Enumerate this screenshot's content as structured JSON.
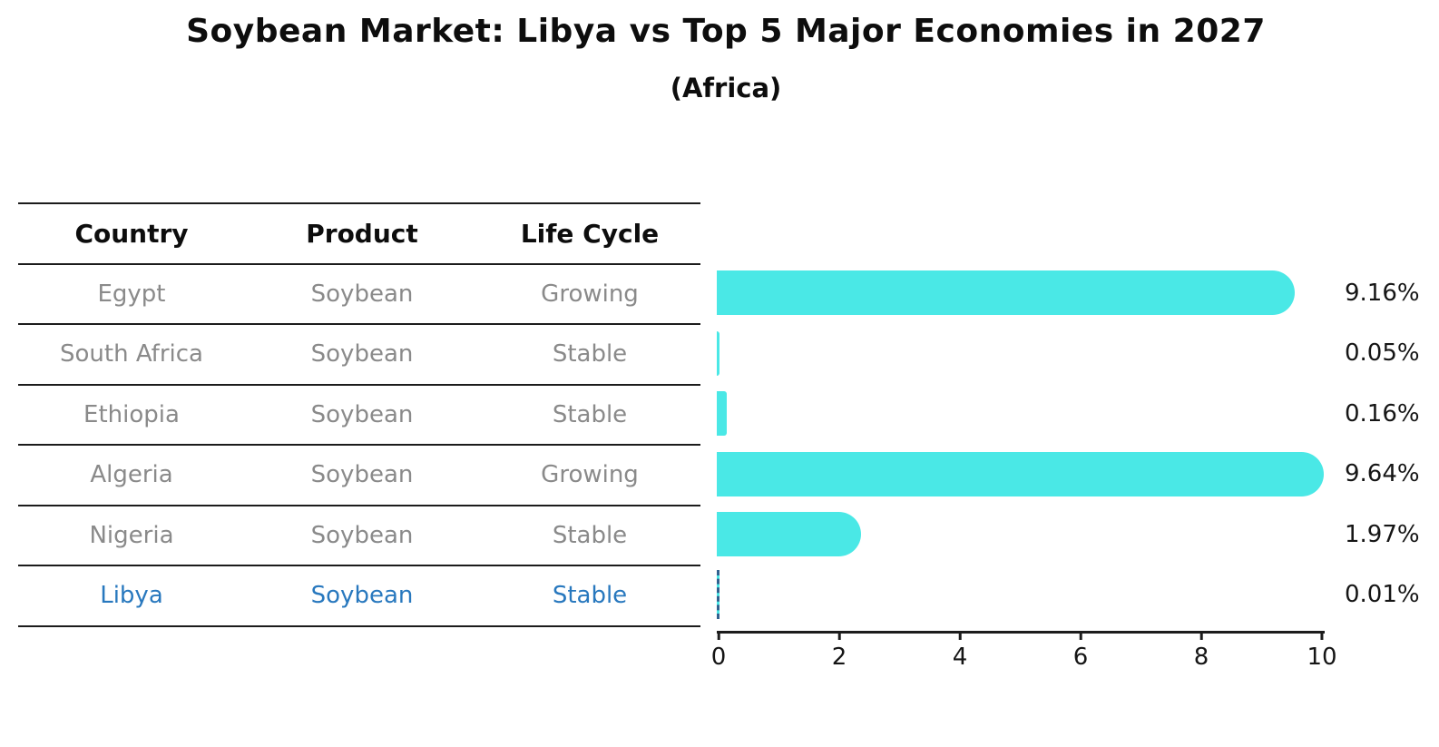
{
  "title": "Soybean Market: Libya vs Top 5 Major Economies in 2027",
  "subtitle": "(Africa)",
  "table": {
    "headers": [
      "Country",
      "Product",
      "Life Cycle"
    ],
    "rows": [
      {
        "country": "Egypt",
        "product": "Soybean",
        "life_cycle": "Growing",
        "highlight": false
      },
      {
        "country": "South Africa",
        "product": "Soybean",
        "life_cycle": "Stable",
        "highlight": false
      },
      {
        "country": "Ethiopia",
        "product": "Soybean",
        "life_cycle": "Stable",
        "highlight": false
      },
      {
        "country": "Algeria",
        "product": "Soybean",
        "life_cycle": "Growing",
        "highlight": false
      },
      {
        "country": "Nigeria",
        "product": "Soybean",
        "life_cycle": "Stable",
        "highlight": false
      },
      {
        "country": "Libya",
        "product": "Soybean",
        "life_cycle": "Stable",
        "highlight": true
      }
    ]
  },
  "chart_data": {
    "type": "bar",
    "orientation": "horizontal",
    "title": "Soybean Market: Libya vs Top 5 Major Economies in 2027",
    "subtitle": "(Africa)",
    "categories": [
      "Egypt",
      "South Africa",
      "Ethiopia",
      "Algeria",
      "Nigeria",
      "Libya"
    ],
    "values": [
      9.16,
      0.05,
      0.16,
      9.64,
      1.97,
      0.01
    ],
    "value_labels": [
      "9.16%",
      "0.05%",
      "0.16%",
      "9.64%",
      "1.97%",
      "0.01%"
    ],
    "xlabel": "",
    "ylabel": "",
    "xlim": [
      0,
      10
    ],
    "x_ticks": [
      "0",
      "2",
      "4",
      "6",
      "8",
      "10"
    ],
    "grid": false,
    "legend": "none",
    "highlight_index": 5
  },
  "colors": {
    "bar": "#4ae8e6",
    "highlight_text": "#2878be",
    "highlight_marker": "#31618f",
    "table_text": "#8a8a8a",
    "heading_text": "#0d0d0d",
    "line": "#1c1c1c"
  }
}
